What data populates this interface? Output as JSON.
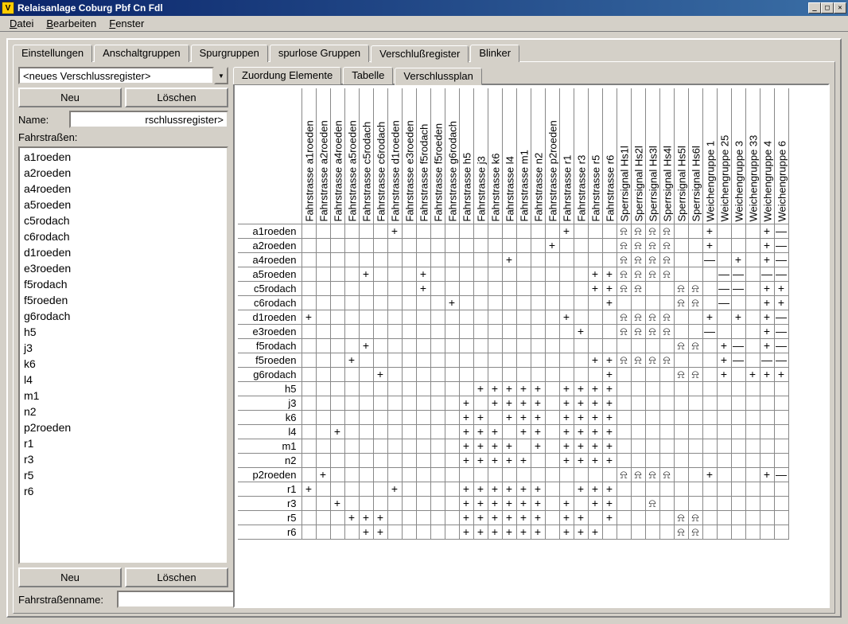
{
  "window": {
    "title": "Relaisanlage Coburg Pbf Cn Fdl",
    "icon_char": "V"
  },
  "menu": {
    "items": [
      "Datei",
      "Bearbeiten",
      "Fenster"
    ]
  },
  "main_tabs": {
    "items": [
      "Einstellungen",
      "Anschaltgruppen",
      "Spurgruppen",
      "spurlose Gruppen",
      "Verschlußregister",
      "Blinker"
    ],
    "active": 4
  },
  "left": {
    "combo_value": "<neues Verschlussregister>",
    "new_label": "Neu",
    "delete_label": "Löschen",
    "name_label": "Name:",
    "name_value": "rschlussregister>",
    "routes_label": "Fahrstraßen:",
    "routes": [
      "a1roeden",
      "a2roeden",
      "a4roeden",
      "a5roeden",
      "c5rodach",
      "c6rodach",
      "d1roeden",
      "e3roeden",
      "f5rodach",
      "f5roeden",
      "g6rodach",
      "h5",
      "j3",
      "k6",
      "l4",
      "m1",
      "n2",
      "p2roeden",
      "r1",
      "r3",
      "r5",
      "r6"
    ],
    "route_new_label": "Neu",
    "route_delete_label": "Löschen",
    "routename_label": "Fahrstraßenname:",
    "routename_value": ""
  },
  "sub_tabs": {
    "items": [
      "Zuordung Elemente",
      "Tabelle",
      "Verschlussplan"
    ],
    "active": 2
  },
  "matrix": {
    "columns": [
      "Fahrstrasse a1roeden",
      "Fahrstrasse a2roeden",
      "Fahrstrasse a4roeden",
      "Fahrstrasse a5roeden",
      "Fahrstrasse c5rodach",
      "Fahrstrasse c6rodach",
      "Fahrstrasse d1roeden",
      "Fahrstrasse e3roeden",
      "Fahrstrasse f5rodach",
      "Fahrstrasse f5roeden",
      "Fahrstrasse g6rodach",
      "Fahrstrasse h5",
      "Fahrstrasse j3",
      "Fahrstrasse k6",
      "Fahrstrasse l4",
      "Fahrstrasse m1",
      "Fahrstrasse n2",
      "Fahrstrasse p2roeden",
      "Fahrstrasse r1",
      "Fahrstrasse r3",
      "Fahrstrasse r5",
      "Fahrstrasse r6",
      "Sperrsignal Hs1l",
      "Sperrsignal Hs2l",
      "Sperrsignal Hs3l",
      "Sperrsignal Hs4l",
      "Sperrsignal Hs5l",
      "Sperrsignal Hs6l",
      "Weichengruppe 1",
      "Weichengruppe 25",
      "Weichengruppe 3",
      "Weichengruppe 33",
      "Weichengruppe 4",
      "Weichengruppe 6"
    ],
    "rows": [
      "a1roeden",
      "a2roeden",
      "a4roeden",
      "a5roeden",
      "c5rodach",
      "c6rodach",
      "d1roeden",
      "e3roeden",
      "f5rodach",
      "f5roeden",
      "g6rodach",
      "h5",
      "j3",
      "k6",
      "l4",
      "m1",
      "n2",
      "p2roeden",
      "r1",
      "r3",
      "r5",
      "r6"
    ],
    "symbols": {
      "p": "+",
      "m": "—",
      "s": "⍾"
    },
    "cells": {
      "a1roeden": {
        "6": "p",
        "18": "p",
        "22": "s",
        "23": "s",
        "24": "s",
        "25": "s",
        "28": "p",
        "32": "p",
        "33": "m"
      },
      "a2roeden": {
        "17": "p",
        "22": "s",
        "23": "s",
        "24": "s",
        "25": "s",
        "28": "p",
        "32": "p",
        "33": "m"
      },
      "a4roeden": {
        "14": "p",
        "22": "s",
        "23": "s",
        "24": "s",
        "25": "s",
        "28": "m",
        "30": "p",
        "32": "p",
        "33": "m"
      },
      "a5roeden": {
        "4": "p",
        "8": "p",
        "20": "p",
        "21": "p",
        "22": "s",
        "23": "s",
        "24": "s",
        "25": "s",
        "29": "m",
        "30": "m",
        "32": "m",
        "33": "m"
      },
      "c5rodach": {
        "8": "p",
        "20": "p",
        "21": "p",
        "22": "s",
        "23": "s",
        "26": "s",
        "27": "s",
        "29": "m",
        "30": "m",
        "32": "p",
        "33": "p"
      },
      "c6rodach": {
        "10": "p",
        "21": "p",
        "26": "s",
        "27": "s",
        "29": "m",
        "32": "p",
        "33": "p"
      },
      "d1roeden": {
        "0": "p",
        "18": "p",
        "22": "s",
        "23": "s",
        "24": "s",
        "25": "s",
        "28": "p",
        "30": "p",
        "32": "p",
        "33": "m"
      },
      "e3roeden": {
        "19": "p",
        "22": "s",
        "23": "s",
        "24": "s",
        "25": "s",
        "28": "m",
        "32": "p",
        "33": "m"
      },
      "f5rodach": {
        "4": "p",
        "26": "s",
        "27": "s",
        "29": "p",
        "30": "m",
        "32": "p",
        "33": "m"
      },
      "f5roeden": {
        "3": "p",
        "20": "p",
        "21": "p",
        "22": "s",
        "23": "s",
        "24": "s",
        "25": "s",
        "29": "p",
        "30": "m",
        "32": "m",
        "33": "m"
      },
      "g6rodach": {
        "5": "p",
        "21": "p",
        "26": "s",
        "27": "s",
        "29": "p",
        "31": "p",
        "32": "p",
        "33": "p"
      },
      "h5": {
        "12": "p",
        "13": "p",
        "14": "p",
        "15": "p",
        "16": "p",
        "18": "p",
        "19": "p",
        "20": "p",
        "21": "p"
      },
      "j3": {
        "11": "p",
        "13": "p",
        "14": "p",
        "15": "p",
        "16": "p",
        "18": "p",
        "19": "p",
        "20": "p",
        "21": "p"
      },
      "k6": {
        "11": "p",
        "12": "p",
        "14": "p",
        "15": "p",
        "16": "p",
        "18": "p",
        "19": "p",
        "20": "p",
        "21": "p"
      },
      "l4": {
        "2": "p",
        "11": "p",
        "12": "p",
        "13": "p",
        "15": "p",
        "16": "p",
        "18": "p",
        "19": "p",
        "20": "p",
        "21": "p"
      },
      "m1": {
        "11": "p",
        "12": "p",
        "13": "p",
        "14": "p",
        "16": "p",
        "18": "p",
        "19": "p",
        "20": "p",
        "21": "p"
      },
      "n2": {
        "11": "p",
        "12": "p",
        "13": "p",
        "14": "p",
        "15": "p",
        "18": "p",
        "19": "p",
        "20": "p",
        "21": "p"
      },
      "p2roeden": {
        "1": "p",
        "22": "s",
        "23": "s",
        "24": "s",
        "25": "s",
        "28": "p",
        "32": "p",
        "33": "m"
      },
      "r1": {
        "0": "p",
        "6": "p",
        "11": "p",
        "12": "p",
        "13": "p",
        "14": "p",
        "15": "p",
        "16": "p",
        "19": "p",
        "20": "p",
        "21": "p"
      },
      "r3": {
        "2": "p",
        "11": "p",
        "12": "p",
        "13": "p",
        "14": "p",
        "15": "p",
        "16": "p",
        "18": "p",
        "20": "p",
        "21": "p",
        "24": "s"
      },
      "r5": {
        "3": "p",
        "4": "p",
        "5": "p",
        "11": "p",
        "12": "p",
        "13": "p",
        "14": "p",
        "15": "p",
        "16": "p",
        "18": "p",
        "19": "p",
        "21": "p",
        "26": "s",
        "27": "s"
      },
      "r6": {
        "4": "p",
        "5": "p",
        "11": "p",
        "12": "p",
        "13": "p",
        "14": "p",
        "15": "p",
        "16": "p",
        "18": "p",
        "19": "p",
        "20": "p",
        "26": "s",
        "27": "s"
      }
    }
  }
}
